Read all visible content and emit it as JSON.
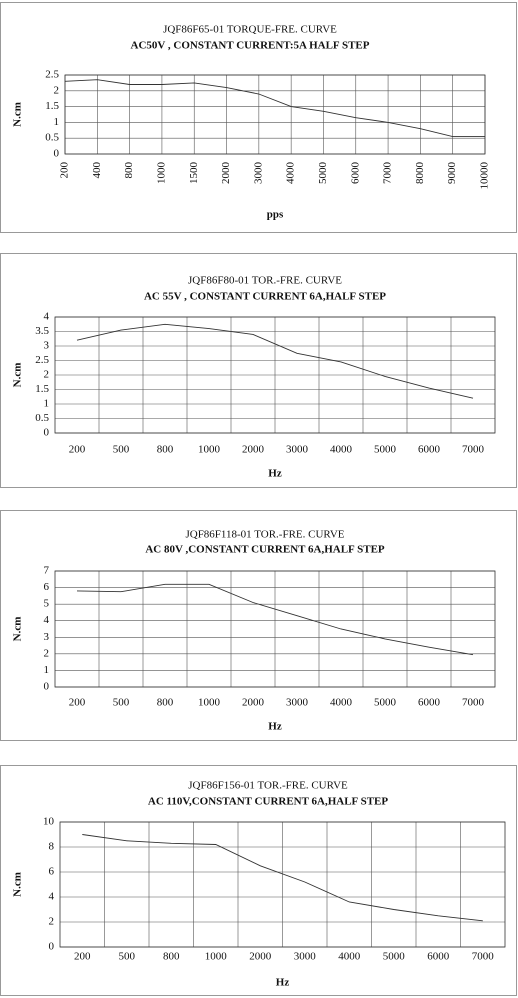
{
  "chart_data": [
    {
      "type": "line",
      "title": "JQF86F65-01    TORQUE-FRE. CURVE",
      "subtitle": "AC50V , CONSTANT CURRENT:5A HALF STEP",
      "x_label": "pps",
      "y_label": "N.cm",
      "categories": [
        "200",
        "400",
        "800",
        "1000",
        "1500",
        "2000",
        "3000",
        "4000",
        "5000",
        "6000",
        "7000",
        "8000",
        "9000",
        "10000"
      ],
      "series": [
        {
          "name": "JQF86F65-01",
          "color": "#333333",
          "values": [
            2.3,
            2.35,
            2.2,
            2.2,
            2.25,
            2.1,
            1.9,
            1.5,
            1.35,
            1.15,
            1.0,
            0.8,
            0.55,
            0.55
          ]
        }
      ],
      "ylim": [
        0,
        2.5
      ],
      "yticks": [
        0,
        0.5,
        1,
        1.5,
        2,
        2.5
      ],
      "grid": true
    },
    {
      "type": "line",
      "title": "JQF86F80-01    TOR.-FRE. CURVE",
      "subtitle": "AC 55V , CONSTANT CURRENT 6A,HALF STEP",
      "x_label": "Hz",
      "y_label": "N.cm",
      "categories": [
        "200",
        "500",
        "800",
        "1000",
        "2000",
        "3000",
        "4000",
        "5000",
        "6000",
        "7000"
      ],
      "series": [
        {
          "name": "JQF86F80-01",
          "color": "#333333",
          "values": [
            3.2,
            3.55,
            3.75,
            3.6,
            3.4,
            2.75,
            2.45,
            1.95,
            1.55,
            1.2
          ]
        }
      ],
      "ylim": [
        0,
        4
      ],
      "yticks": [
        0,
        0.5,
        1,
        1.5,
        2,
        2.5,
        3,
        3.5,
        4
      ],
      "grid": true
    },
    {
      "type": "line",
      "title": "JQF86F118-01    TOR.-FRE. CURVE",
      "subtitle": "AC 80V ,CONSTANT   CURRENT 6A,HALF STEP",
      "x_label": "Hz",
      "y_label": "N.cm",
      "categories": [
        "200",
        "500",
        "800",
        "1000",
        "2000",
        "3000",
        "4000",
        "5000",
        "6000",
        "7000"
      ],
      "series": [
        {
          "name": "JQF86F118-01",
          "color": "#333333",
          "values": [
            5.8,
            5.75,
            6.2,
            6.2,
            5.1,
            4.3,
            3.5,
            2.9,
            2.4,
            1.95
          ]
        }
      ],
      "ylim": [
        0,
        7
      ],
      "yticks": [
        0,
        1,
        2,
        3,
        4,
        5,
        6,
        7
      ],
      "grid": true
    },
    {
      "type": "line",
      "title": "JQF86F156-01    TOR.-FRE. CURVE",
      "subtitle": "AC 110V,CONSTANT CURRENT 6A,HALF STEP",
      "x_label": "Hz",
      "y_label": "N.cm",
      "categories": [
        "200",
        "500",
        "800",
        "1000",
        "2000",
        "3000",
        "4000",
        "5000",
        "6000",
        "7000"
      ],
      "series": [
        {
          "name": "JQF86F156-01",
          "color": "#333333",
          "values": [
            9,
            8.5,
            8.3,
            8.2,
            6.5,
            5.2,
            3.6,
            3.0,
            2.5,
            2.1
          ]
        }
      ],
      "ylim": [
        0,
        10
      ],
      "yticks": [
        0,
        2,
        4,
        6,
        8,
        10
      ],
      "grid": true
    }
  ]
}
